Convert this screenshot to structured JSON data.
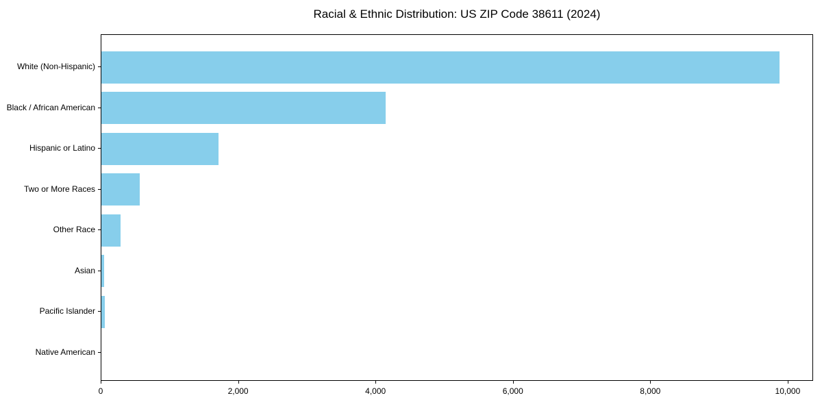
{
  "title": "Racial & Ethnic Distribution: US ZIP Code 38611 (2024)",
  "colors": {
    "bar": "#87CEEB",
    "axis": "#000000",
    "background": "#FFFFFF",
    "text": "#000000"
  },
  "chart_data": {
    "type": "bar",
    "orientation": "horizontal",
    "title": "Racial & Ethnic Distribution: US ZIP Code 38611 (2024)",
    "categories": [
      "White (Non-Hispanic)",
      "Black / African American",
      "Hispanic or Latino",
      "Two or More Races",
      "Other Race",
      "Asian",
      "Pacific Islander",
      "Native American"
    ],
    "values": [
      9870,
      4140,
      1710,
      560,
      280,
      40,
      45,
      0
    ],
    "xlabel": "",
    "ylabel": "",
    "xlim": [
      0,
      10370
    ],
    "xticks": [
      0,
      2000,
      4000,
      6000,
      8000,
      10000
    ],
    "xtick_labels": [
      "0",
      "2,000",
      "4,000",
      "6,000",
      "8,000",
      "10,000"
    ],
    "grid": false,
    "legend": null,
    "bar_color": "#87CEEB"
  }
}
